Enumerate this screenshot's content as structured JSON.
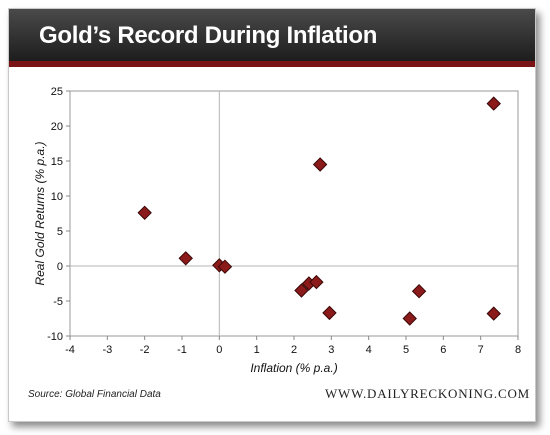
{
  "title": "Gold’s Record During Inflation",
  "source": "Source:  Global Financial Data",
  "site": "WWW.DAILYRECKONING.COM",
  "chart_data": {
    "type": "scatter",
    "xlabel": "Inflation (% p.a.)",
    "ylabel": "Real Gold Returns (% p.a.)",
    "xlim": [
      -4,
      8
    ],
    "ylim": [
      -10,
      25
    ],
    "xticks": [
      "-4",
      "-3",
      "-2",
      "-1",
      "0",
      "1",
      "2",
      "3",
      "4",
      "5",
      "6",
      "7",
      "8"
    ],
    "yticks": [
      "25",
      "20",
      "15",
      "10",
      "5",
      "0",
      "-5",
      "-10"
    ],
    "grid": false,
    "marker_color": "#8b1a1a",
    "points": [
      {
        "x": -2.0,
        "y": 7.6
      },
      {
        "x": -0.9,
        "y": 1.1
      },
      {
        "x": 0.0,
        "y": 0.1
      },
      {
        "x": 0.15,
        "y": -0.1
      },
      {
        "x": 2.2,
        "y": -3.5
      },
      {
        "x": 2.4,
        "y": -2.5
      },
      {
        "x": 2.6,
        "y": -2.3
      },
      {
        "x": 2.7,
        "y": 14.5
      },
      {
        "x": 2.95,
        "y": -6.7
      },
      {
        "x": 5.1,
        "y": -7.5
      },
      {
        "x": 5.35,
        "y": -3.6
      },
      {
        "x": 7.35,
        "y": 23.2
      },
      {
        "x": 7.35,
        "y": -6.8
      }
    ]
  }
}
